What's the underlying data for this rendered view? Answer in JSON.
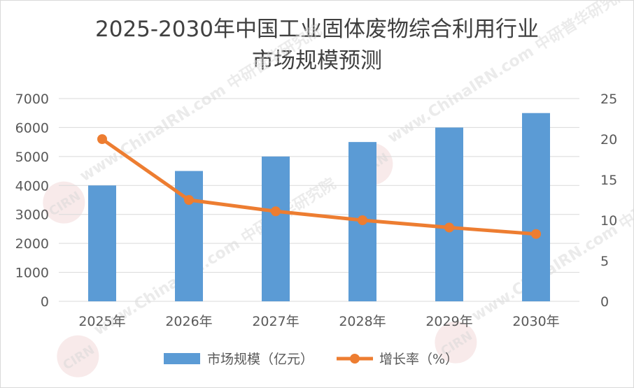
{
  "chart_data": {
    "type": "bar",
    "title_lines": [
      "2025-2030年中国工业固体废物综合利用行业",
      "市场规模预测"
    ],
    "categories": [
      "2025年",
      "2026年",
      "2027年",
      "2028年",
      "2029年",
      "2030年"
    ],
    "series": [
      {
        "name": "市场规模（亿元）",
        "type": "bar",
        "axis": "left",
        "color": "#5b9bd5",
        "values": [
          4000,
          4500,
          5000,
          5500,
          6000,
          6500
        ]
      },
      {
        "name": "增长率（%）",
        "type": "line",
        "axis": "right",
        "color": "#ed7d31",
        "values": [
          20,
          12.5,
          11.1,
          10,
          9.1,
          8.3
        ]
      }
    ],
    "y_left": {
      "min": 0,
      "max": 7000,
      "step": 1000
    },
    "y_right": {
      "min": 0,
      "max": 25,
      "step": 5
    },
    "grid": true,
    "legend_position": "bottom"
  },
  "watermark": {
    "text": "www.ChinaIRN.com 中研普华研究院",
    "logo": "CIRN"
  }
}
